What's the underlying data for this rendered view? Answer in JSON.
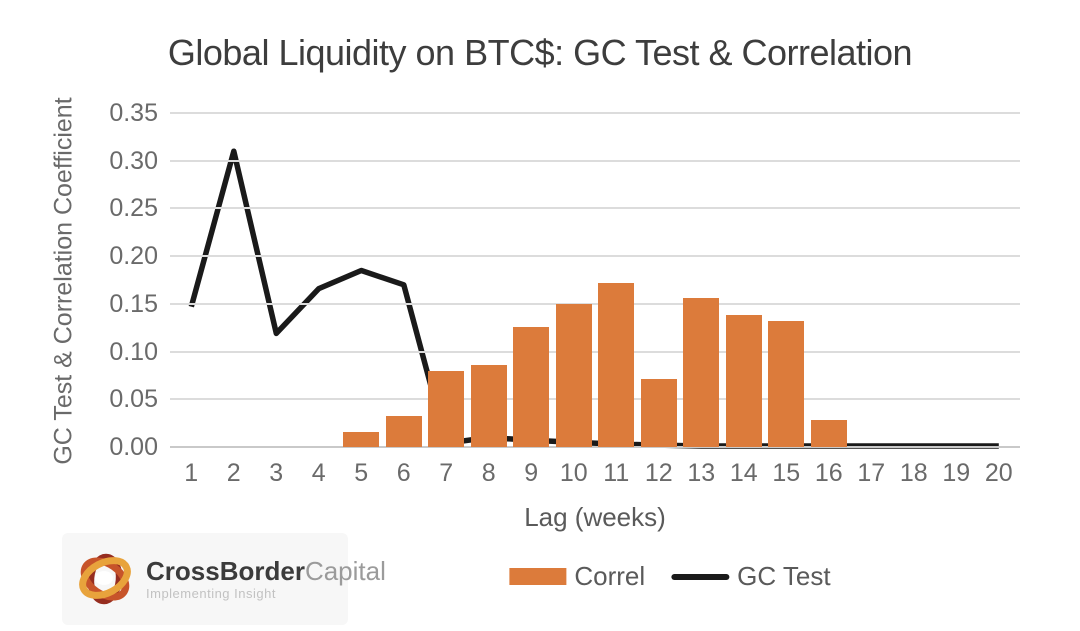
{
  "chart_data": {
    "type": "combo-bar-line",
    "title": "Global Liquidity on BTC$: GC Test & Correlation",
    "xlabel": "Lag (weeks)",
    "ylabel": "GC Test & Correlation Coefficient",
    "categories": [
      "1",
      "2",
      "3",
      "4",
      "5",
      "6",
      "7",
      "8",
      "9",
      "10",
      "11",
      "12",
      "13",
      "14",
      "15",
      "16",
      "17",
      "18",
      "19",
      "20"
    ],
    "series": [
      {
        "name": "Correl",
        "type": "bar",
        "color": "#DC7B3B",
        "values": [
          0,
          0,
          0,
          0,
          0.016,
          0.032,
          0.08,
          0.086,
          0.126,
          0.15,
          0.172,
          0.071,
          0.156,
          0.138,
          0.132,
          0.028,
          0,
          0,
          0,
          0
        ]
      },
      {
        "name": "GC Test",
        "type": "line",
        "color": "#1A1A1A",
        "values": [
          0.147,
          0.31,
          0.119,
          0.166,
          0.185,
          0.17,
          0.004,
          0.01,
          0.007,
          0.005,
          0.003,
          0.002,
          0.001,
          0.001,
          0.001,
          0.001,
          0.001,
          0.001,
          0.001,
          0.001
        ]
      }
    ],
    "ylim": [
      0,
      0.35
    ],
    "yticks": [
      0,
      0.05,
      0.1,
      0.15,
      0.2,
      0.25,
      0.3,
      0.35
    ],
    "ytick_labels": [
      "0.00",
      "0.05",
      "0.10",
      "0.15",
      "0.20",
      "0.25",
      "0.30",
      "0.35"
    ],
    "grid": true,
    "legend_position": "bottom"
  },
  "colors": {
    "bar": "#DC7B3B",
    "line": "#1A1A1A",
    "gridline": "#DCDCDC",
    "axis_text": "#6A6A6A",
    "title_text": "#3D3D3D"
  },
  "logo": {
    "brand_bold": "CrossBorder",
    "brand_light": "Capital",
    "tagline": "Implementing Insight"
  }
}
